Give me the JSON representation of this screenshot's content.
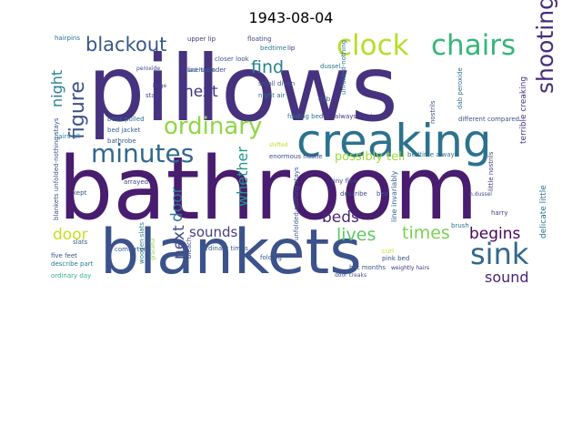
{
  "title": "1943-08-04",
  "words": [
    {
      "text": "pillows",
      "color": "#46327e"
    },
    {
      "text": "bathroom",
      "color": "#481c6e"
    },
    {
      "text": "blankets",
      "color": "#3b528b"
    },
    {
      "text": "creaking",
      "color": "#2c728e"
    },
    {
      "text": "clock",
      "color": "#b5de2b"
    },
    {
      "text": "chairs",
      "color": "#35b779"
    },
    {
      "text": "minutes",
      "color": "#31688e"
    },
    {
      "text": "ordinary",
      "color": "#8fd744"
    },
    {
      "text": "figure",
      "color": "#3b528b"
    },
    {
      "text": "shooting",
      "color": "#472d7b"
    },
    {
      "text": "sink",
      "color": "#31688e"
    },
    {
      "text": "blackout",
      "color": "#38588c"
    },
    {
      "text": "find",
      "color": "#26828e"
    },
    {
      "text": "next",
      "color": "#46337e"
    },
    {
      "text": "next",
      "color": "#3e4a89"
    },
    {
      "text": "door",
      "color": "#2a788e"
    },
    {
      "text": "door",
      "color": "#c8e020"
    },
    {
      "text": "beds",
      "color": "#482677"
    },
    {
      "text": "lives",
      "color": "#5ec962"
    },
    {
      "text": "times",
      "color": "#7ad151"
    },
    {
      "text": "begins",
      "color": "#450559"
    },
    {
      "text": "sound",
      "color": "#482475"
    },
    {
      "text": "sounds",
      "color": "#433e85"
    },
    {
      "text": "whether",
      "color": "#1f988b"
    },
    {
      "text": "night",
      "color": "#277f8e"
    },
    {
      "text": "possibly tell",
      "color": "#a0da39"
    },
    {
      "text": "hairpins",
      "color": "#2c728e"
    },
    {
      "text": "upper lip",
      "color": "#453882"
    },
    {
      "text": "line thunder",
      "color": "#3e4989"
    },
    {
      "text": "closer look",
      "color": "#3b528b"
    },
    {
      "text": "floating",
      "color": "#414487"
    },
    {
      "text": "bedtime",
      "color": "#2a788e"
    },
    {
      "text": "lip",
      "color": "#46327e"
    },
    {
      "text": "dussel",
      "color": "#2c728e"
    },
    {
      "text": "peroxide",
      "color": "#3e4a89"
    },
    {
      "text": "sad hustle",
      "color": "#355f8d"
    },
    {
      "text": "small divan",
      "color": "#3a538b"
    },
    {
      "text": "night air",
      "color": "#2e6e8e"
    },
    {
      "text": "stays",
      "color": "#404688"
    },
    {
      "text": "dab",
      "color": "#3b528b"
    },
    {
      "text": "beds pulled",
      "color": "#2f6c8e"
    },
    {
      "text": "bed jacket",
      "color": "#34618d"
    },
    {
      "text": "bathrobe",
      "color": "#38588c"
    },
    {
      "text": "hairs-all",
      "color": "#26818e"
    },
    {
      "text": "folding bed",
      "color": "#2d708e"
    },
    {
      "text": "always begins",
      "color": "#443983"
    },
    {
      "text": "different compared",
      "color": "#3b528b"
    },
    {
      "text": "enormous hustle",
      "color": "#3e4a89"
    },
    {
      "text": "shifted",
      "color": "#bddf26"
    },
    {
      "text": "bedtime always",
      "color": "#2e6f8e"
    },
    {
      "text": "arrayed",
      "color": "#404588"
    },
    {
      "text": "kept",
      "color": "#3a548c"
    },
    {
      "text": "slats",
      "color": "#34608d"
    },
    {
      "text": "five feet",
      "color": "#3b528b"
    },
    {
      "text": "describe part",
      "color": "#297b8e"
    },
    {
      "text": "ordinary day",
      "color": "#2fb47c"
    },
    {
      "text": "comforter",
      "color": "#365c8d"
    },
    {
      "text": "ordinary times",
      "color": "#38598c"
    },
    {
      "text": "folding",
      "color": "#3b528b"
    },
    {
      "text": "describe",
      "color": "#404688"
    },
    {
      "text": "tiny flea",
      "color": "#3e4a89"
    },
    {
      "text": "bed",
      "color": "#3b528b"
    },
    {
      "text": "brush",
      "color": "#2c728e"
    },
    {
      "text": "harry",
      "color": "#414487"
    },
    {
      "text": "hot months",
      "color": "#38598c"
    },
    {
      "text": "pink bed",
      "color": "#3b528b"
    },
    {
      "text": "curl",
      "color": "#c8e020"
    },
    {
      "text": "delicate little",
      "color": "#2c728e"
    },
    {
      "text": "little nostrils",
      "color": "#453781"
    },
    {
      "text": "terrible creaking",
      "color": "#46327e"
    },
    {
      "text": "line invariably",
      "color": "#34618d"
    },
    {
      "text": "nostrils",
      "color": "#3e4a89"
    },
    {
      "text": "dab peroxide",
      "color": "#2d708e"
    },
    {
      "text": "unfolded-nothing",
      "color": "#2c728e"
    },
    {
      "text": "unfolded-nothing stays",
      "color": "#38598c"
    },
    {
      "text": "blankets unfolded-nothing stays",
      "color": "#3b528b"
    },
    {
      "text": "large",
      "color": "#3e4a89"
    },
    {
      "text": "bleach",
      "color": "#414487"
    },
    {
      "text": "wooden slats",
      "color": "#2a788e"
    },
    {
      "text": "n.dussel",
      "color": "#3e4a89"
    },
    {
      "text": "door creaks",
      "color": "#3b528b"
    },
    {
      "text": "graceful",
      "color": "#8fd744"
    },
    {
      "text": "weightly hairs",
      "color": "#453882"
    }
  ]
}
